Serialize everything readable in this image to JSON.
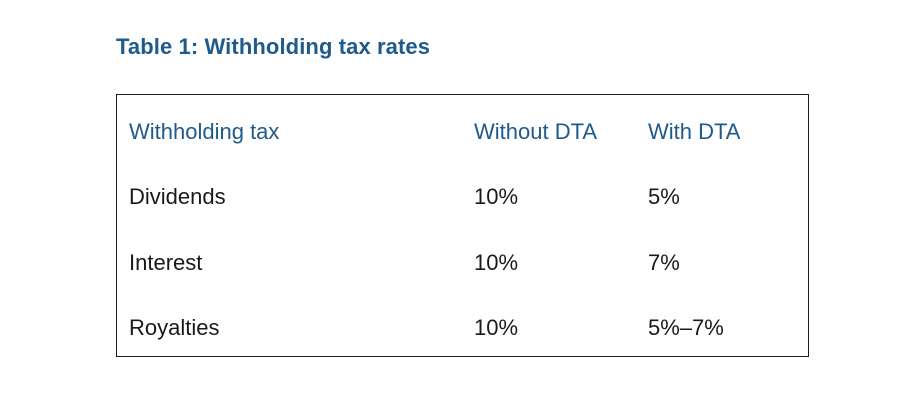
{
  "document": {
    "title": "Table 1: Withholding tax rates"
  },
  "table": {
    "headers": [
      "Withholding tax",
      "Without DTA",
      "With DTA"
    ],
    "rows": [
      [
        "Dividends",
        "10%",
        "5%"
      ],
      [
        "Interest",
        "10%",
        "7%"
      ],
      [
        "Royalties",
        "10%",
        "5%–7%"
      ]
    ]
  }
}
